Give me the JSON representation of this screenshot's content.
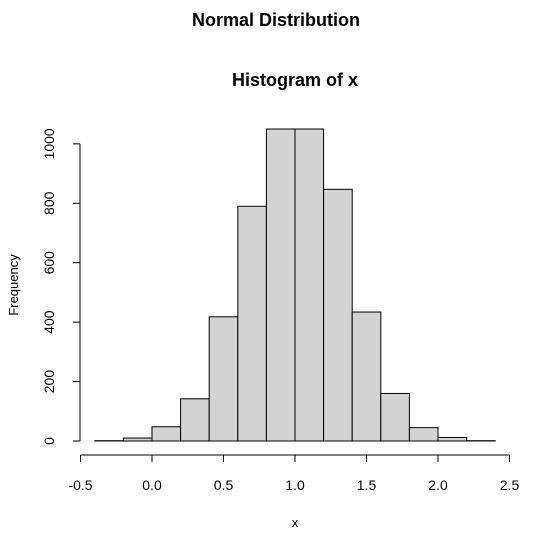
{
  "page": {
    "title": "Normal Distribution"
  },
  "chart_data": {
    "type": "bar",
    "title": "Histogram of x",
    "xlabel": "x",
    "ylabel": "Frequency",
    "xlim": [
      -0.5,
      2.5
    ],
    "ylim": [
      0,
      1050
    ],
    "xticks": [
      -0.5,
      0.0,
      0.5,
      1.0,
      1.5,
      2.0,
      2.5
    ],
    "xtick_labels": [
      "-0.5",
      "0.0",
      "0.5",
      "1.0",
      "1.5",
      "2.0",
      "2.5"
    ],
    "yticks": [
      0,
      200,
      400,
      600,
      800,
      1000
    ],
    "ytick_labels": [
      "0",
      "200",
      "400",
      "600",
      "800",
      "1000"
    ],
    "bin_edges": [
      -0.4,
      -0.2,
      0.0,
      0.2,
      0.4,
      0.6,
      0.8,
      1.0,
      1.2,
      1.4,
      1.6,
      1.8,
      2.0,
      2.2,
      2.4
    ],
    "counts": [
      1,
      10,
      48,
      142,
      418,
      790,
      1050,
      1050,
      847,
      434,
      160,
      45,
      12,
      1
    ],
    "bar_fill": "#d3d3d3",
    "bar_stroke": "#000000",
    "grid": false
  }
}
